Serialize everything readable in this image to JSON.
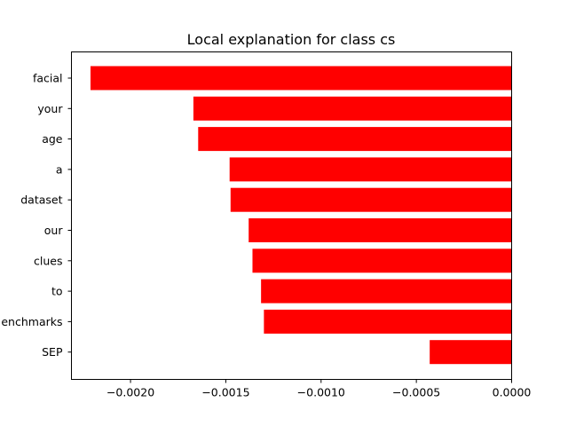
{
  "chart_data": {
    "type": "bar",
    "orientation": "horizontal",
    "title": "Local explanation for class cs",
    "xlabel": "",
    "ylabel": "",
    "categories": [
      "facial",
      "your",
      "age",
      "a",
      "dataset",
      "our",
      "clues",
      "to",
      "enchmarks",
      "SEP"
    ],
    "values": [
      -0.00221,
      -0.00167,
      -0.001645,
      -0.00148,
      -0.001475,
      -0.00138,
      -0.00136,
      -0.001315,
      -0.0013,
      -0.00043
    ],
    "xlim": [
      -0.00231,
      0.0
    ],
    "xticks": [
      -0.002,
      -0.0015,
      -0.001,
      -0.0005,
      0.0
    ],
    "xtick_labels": [
      "−0.0020",
      "−0.0015",
      "−0.0010",
      "−0.0005",
      "0.0000"
    ],
    "bar_color": "#ff0000",
    "grid": false,
    "legend": "none"
  }
}
